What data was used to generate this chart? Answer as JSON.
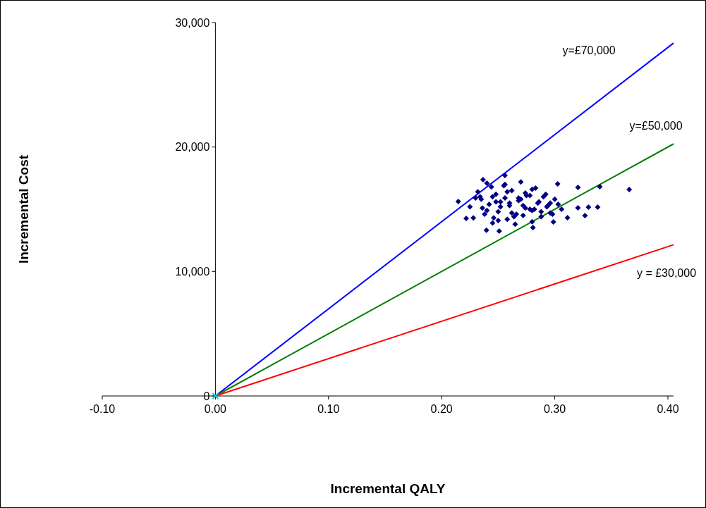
{
  "chart_data": {
    "type": "scatter",
    "xlabel": "Incremental QALY",
    "ylabel": "Incremental Cost",
    "xlim": [
      -0.1,
      0.405
    ],
    "ylim": [
      0,
      30000
    ],
    "xticks": [
      {
        "value": -0.1,
        "label": "-0.10"
      },
      {
        "value": 0,
        "label": "0.00"
      },
      {
        "value": 0.1,
        "label": "0.10"
      },
      {
        "value": 0.2,
        "label": "0.20"
      },
      {
        "value": 0.3,
        "label": "0.30"
      },
      {
        "value": 0.4,
        "label": "0.40"
      }
    ],
    "yticks": [
      {
        "value": 0,
        "label": "0"
      },
      {
        "value": 10000,
        "label": "10,000"
      },
      {
        "value": 20000,
        "label": "20,000"
      },
      {
        "value": 30000,
        "label": "30,000"
      }
    ],
    "grid": false,
    "series": [
      {
        "type": "line",
        "name": "y=£70,000",
        "color": "#0000ff",
        "x": [
          0,
          0.405
        ],
        "values": [
          0,
          28350
        ]
      },
      {
        "type": "line",
        "name": "y=£50,000",
        "color": "#008000",
        "x": [
          0,
          0.405
        ],
        "values": [
          0,
          20250
        ]
      },
      {
        "type": "line",
        "name": "y = £30,000",
        "color": "#ff0000",
        "x": [
          0,
          0.405
        ],
        "values": [
          0,
          12150
        ]
      },
      {
        "marker": "diamond",
        "color": "#000080",
        "x": [
          0.2147,
          0.2396,
          0.2509,
          0.2807,
          0.2988,
          0.3025,
          0.3205,
          0.3398,
          0.3658,
          0.3205,
          0.3298,
          0.3379,
          0.3267,
          0.3112,
          0.2559,
          0.2366,
          0.2217,
          0.225,
          0.228,
          0.232,
          0.235,
          0.238,
          0.24,
          0.242,
          0.245,
          0.248,
          0.25,
          0.252,
          0.255,
          0.258,
          0.26,
          0.262,
          0.265,
          0.268,
          0.27,
          0.272,
          0.275,
          0.278,
          0.28,
          0.283,
          0.285,
          0.288,
          0.29,
          0.293,
          0.296,
          0.3,
          0.303,
          0.306,
          0.23,
          0.236,
          0.244,
          0.25,
          0.256,
          0.262,
          0.268,
          0.274,
          0.28,
          0.286,
          0.292,
          0.298,
          0.24,
          0.248,
          0.256,
          0.264,
          0.272,
          0.28,
          0.288,
          0.296,
          0.234,
          0.246,
          0.258,
          0.27,
          0.282,
          0.294,
          0.252,
          0.266,
          0.278,
          0.26,
          0.274,
          0.245
        ],
        "values": [
          15620,
          13320,
          13240,
          13530,
          13980,
          17040,
          16750,
          16810,
          16580,
          15110,
          15170,
          15170,
          14490,
          14320,
          17720,
          17380,
          14260,
          15200,
          14300,
          16400,
          15800,
          14600,
          17100,
          15400,
          13900,
          16200,
          14800,
          15600,
          16900,
          14200,
          15300,
          16500,
          13800,
          15900,
          17200,
          14500,
          16100,
          15000,
          14000,
          16700,
          15500,
          14400,
          16000,
          15200,
          14700,
          15800,
          15400,
          15000,
          15900,
          15100,
          16800,
          14100,
          17000,
          14700,
          15700,
          16300,
          14900,
          15600,
          16200,
          14600,
          14900,
          15600,
          15900,
          14400,
          15300,
          16600,
          14800,
          15500,
          16000,
          14300,
          16400,
          15800,
          15000,
          15300,
          15200,
          14600,
          16100,
          15500,
          15100,
          16000
        ]
      },
      {
        "marker": "cross",
        "color": "#00cccc",
        "x": [
          0
        ],
        "values": [
          0
        ]
      }
    ]
  }
}
